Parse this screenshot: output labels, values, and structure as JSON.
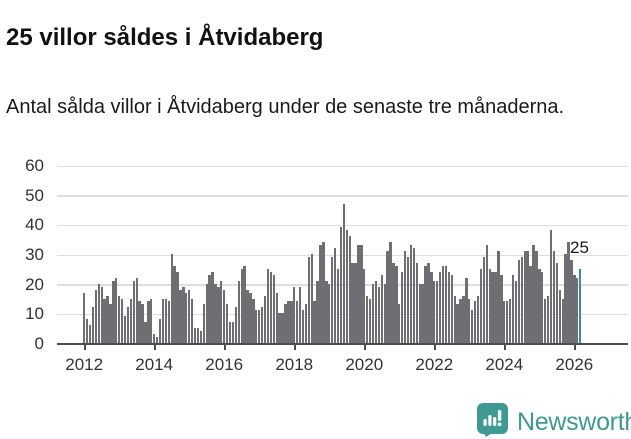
{
  "header": {
    "title": "25 villor såldes i Åtvidaberg",
    "subtitle": "Antal sålda villor i Åtvidaberg under de senaste tre månaderna."
  },
  "chart_data": {
    "type": "bar",
    "title": "25 villor såldes i Åtvidaberg",
    "xlabel": "",
    "ylabel": "",
    "unit": "sålda villor (rullande tre månader)",
    "start": "2012-01",
    "freq": "monthly",
    "ylim": [
      0,
      60
    ],
    "grid": true,
    "yticks": [
      0,
      10,
      20,
      30,
      40,
      50,
      60
    ],
    "xtick_years": [
      2012,
      2014,
      2016,
      2018,
      2020,
      2022,
      2024,
      2026
    ],
    "bar_color": "#6e6e73",
    "highlight_color": "#339290",
    "highlight_last": true,
    "annotation": {
      "text": "25"
    },
    "values": [
      17,
      8,
      6,
      12,
      18,
      20,
      19,
      15,
      16,
      13,
      21,
      22,
      16,
      15,
      9,
      12,
      15,
      21,
      22,
      14,
      13,
      7,
      14,
      15,
      3,
      2,
      8,
      15,
      15,
      14,
      30,
      26,
      24,
      18,
      19,
      17,
      18,
      15,
      5,
      5,
      4,
      13,
      20,
      23,
      24,
      20,
      19,
      21,
      18,
      13,
      7,
      7,
      12,
      21,
      25,
      26,
      18,
      17,
      15,
      11,
      11,
      12,
      16,
      25,
      24,
      23,
      17,
      10,
      10,
      13,
      14,
      14,
      19,
      14,
      19,
      11,
      13,
      29,
      30,
      14,
      21,
      33,
      34,
      21,
      20,
      29,
      32,
      25,
      39,
      47,
      38,
      36,
      27,
      27,
      33,
      33,
      25,
      16,
      15,
      20,
      21,
      19,
      23,
      20,
      31,
      34,
      27,
      26,
      13,
      24,
      31,
      29,
      33,
      32,
      27,
      20,
      20,
      26,
      27,
      24,
      21,
      21,
      24,
      26,
      26,
      24,
      23,
      16,
      13,
      15,
      16,
      22,
      15,
      11,
      14,
      16,
      25,
      29,
      33,
      25,
      24,
      24,
      31,
      23,
      14,
      14,
      15,
      23,
      21,
      28,
      29,
      31,
      31,
      26,
      33,
      31,
      25,
      24,
      15,
      16,
      38,
      31,
      27,
      18,
      15,
      30,
      34,
      28,
      23,
      22,
      25
    ]
  },
  "footer": {
    "brand": "Newsworthy",
    "brand_color": "#3e9a93",
    "logo_icon": "bar-chart-speech-bubble-icon"
  }
}
